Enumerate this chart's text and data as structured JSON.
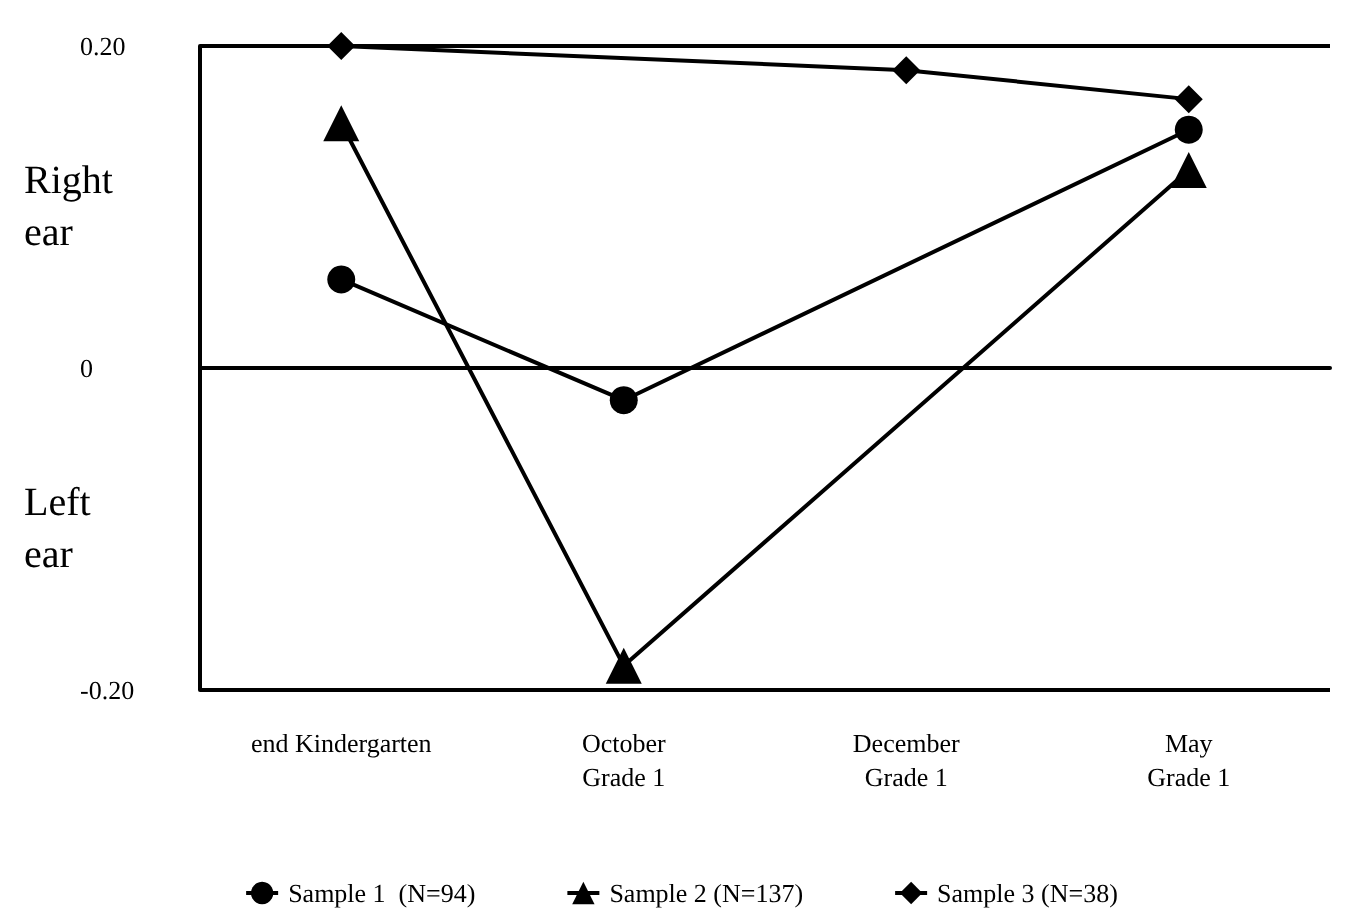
{
  "chart_data": {
    "type": "line",
    "categories": [
      "end Kindergarten",
      "October\nGrade 1",
      "December\nGrade 1",
      "May\nGrade 1"
    ],
    "series": [
      {
        "name": "Sample 1  (N=94)",
        "color": "#000000",
        "marker": "circle",
        "values": [
          0.055,
          -0.02,
          null,
          0.148
        ]
      },
      {
        "name": "Sample 2 (N=137)",
        "color": "#000000",
        "marker": "triangle",
        "values": [
          0.152,
          -0.185,
          null,
          0.123
        ]
      },
      {
        "name": "Sample 3 (N=38)",
        "color": "#000000",
        "marker": "diamond",
        "values": [
          0.2,
          null,
          0.185,
          0.167
        ]
      }
    ],
    "ylim": [
      -0.2,
      0.2
    ],
    "yticks": [
      {
        "value": -0.2,
        "label": "-0.20"
      },
      {
        "value": 0,
        "label": "0"
      },
      {
        "value": 0.2,
        "label": "0.20"
      }
    ],
    "annotations": [
      "Right\near",
      "Left\near"
    ],
    "grid": "y",
    "legend": "bottom",
    "line_style": "solid"
  }
}
